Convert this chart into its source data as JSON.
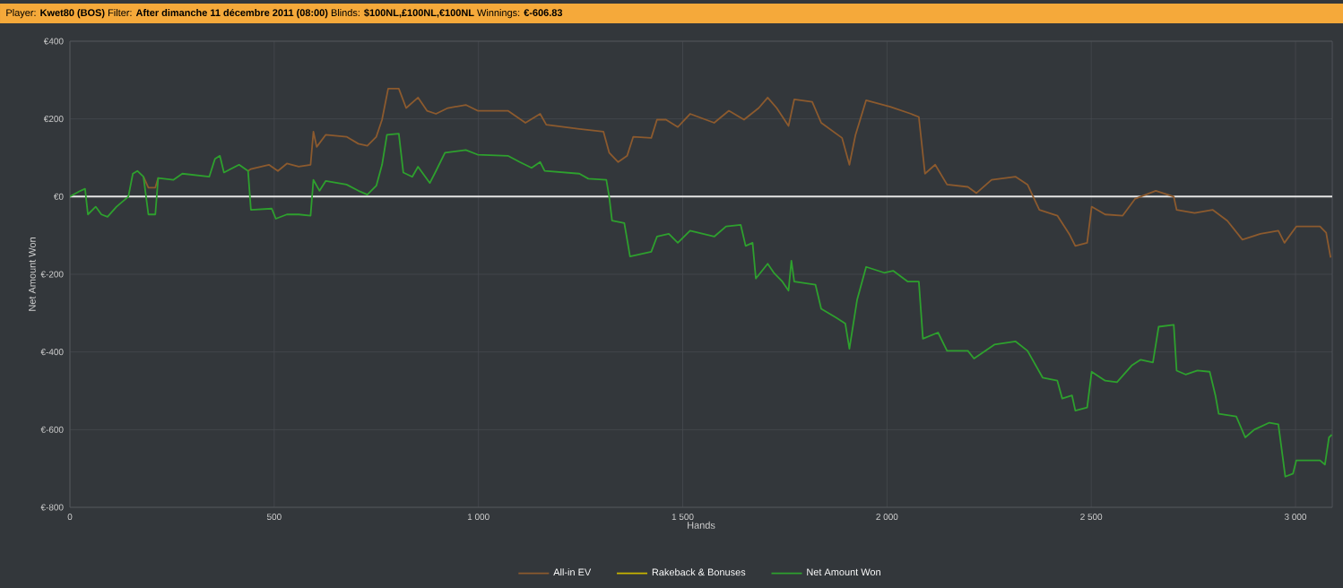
{
  "chart_data": {
    "type": "line",
    "title": "Player: **Kwet80 (BOS)** Filter: **After dimanche 11 décembre 2011 (08:00)** Blinds: **$100NL,£100NL,€100NL** Winnings: **€-606.83**",
    "xlabel": "Hands",
    "ylabel": "Net Amount Won",
    "xlim": [
      0,
      3090
    ],
    "ylim": [
      -800,
      400
    ],
    "xticks": [
      0,
      500,
      {
        "value": 1000,
        "label": "1 000"
      },
      {
        "value": 1500,
        "label": "1 500"
      },
      {
        "value": 2000,
        "label": "2 000"
      },
      {
        "value": 2500,
        "label": "2 500"
      },
      {
        "value": 3000,
        "label": "3 000"
      }
    ],
    "yticks": [
      {
        "value": -800,
        "label": "€-800"
      },
      {
        "value": -600,
        "label": "€-600"
      },
      {
        "value": -400,
        "label": "€-400"
      },
      {
        "value": -200,
        "label": "€-200"
      },
      {
        "value": 0,
        "label": "€0"
      },
      {
        "value": 200,
        "label": "€200"
      },
      {
        "value": 400,
        "label": "€400"
      }
    ],
    "grid": true,
    "legend": "bottom",
    "marker": "none",
    "line_style": "solid",
    "ref_lines": [
      {
        "axis": "y",
        "value": 0,
        "color": "#e6e6e6"
      }
    ],
    "series": [
      {
        "name": "All-in EV",
        "color": "#8c5a2e",
        "x": [
          180,
          192,
          209,
          216,
          300,
          436,
          443,
          487,
          509,
          531,
          560,
          589,
          596,
          604,
          626,
          677,
          706,
          728,
          750,
          764,
          779,
          805,
          823,
          852,
          874,
          896,
          925,
          969,
          998,
          1072,
          1115,
          1151,
          1166,
          1247,
          1306,
          1320,
          1342,
          1364,
          1379,
          1423,
          1437,
          1459,
          1488,
          1518,
          1577,
          1613,
          1650,
          1686,
          1708,
          1730,
          1759,
          1773,
          1817,
          1839,
          1890,
          1908,
          1923,
          1949,
          2008,
          2059,
          2078,
          2093,
          2118,
          2147,
          2198,
          2219,
          2256,
          2315,
          2344,
          2373,
          2417,
          2446,
          2461,
          2490,
          2501,
          2534,
          2577,
          2607,
          2658,
          2702,
          2709,
          2753,
          2797,
          2833,
          2870,
          2914,
          2958,
          2973,
          3002,
          3060,
          3075,
          3086
        ],
        "values": [
          51,
          23,
          23,
          48,
          null,
          66,
          71,
          82,
          66,
          85,
          77,
          82,
          167,
          128,
          159,
          154,
          136,
          131,
          154,
          198,
          278,
          278,
          228,
          255,
          221,
          213,
          228,
          236,
          221,
          221,
          190,
          213,
          185,
          174,
          167,
          113,
          89,
          105,
          154,
          151,
          198,
          198,
          179,
          213,
          190,
          221,
          198,
          228,
          255,
          228,
          182,
          250,
          244,
          190,
          151,
          82,
          159,
          248,
          231,
          213,
          205,
          59,
          82,
          31,
          25,
          9,
          43,
          51,
          31,
          -34,
          -49,
          -96,
          -127,
          -119,
          -26,
          -46,
          -49,
          -6,
          15,
          0,
          -34,
          -42,
          -34,
          -62,
          -111,
          -96,
          -88,
          -119,
          -77,
          -77,
          -93,
          -157
        ]
      },
      {
        "name": "Rakeback & Bonuses",
        "color": "#c8b400"
      },
      {
        "name": "Net Amount Won",
        "color": "#2ea02e",
        "x": [
          0,
          26,
          37,
          44,
          63,
          77,
          92,
          114,
          143,
          154,
          165,
          180,
          192,
          209,
          216,
          253,
          275,
          341,
          355,
          367,
          377,
          414,
          436,
          443,
          494,
          504,
          531,
          560,
          589,
          596,
          611,
          626,
          677,
          706,
          728,
          750,
          764,
          776,
          805,
          816,
          838,
          852,
          881,
          896,
          918,
          969,
          998,
          1072,
          1101,
          1130,
          1151,
          1162,
          1247,
          1269,
          1313,
          1320,
          1327,
          1357,
          1371,
          1423,
          1437,
          1466,
          1488,
          1518,
          1577,
          1606,
          1642,
          1654,
          1671,
          1679,
          1708,
          1723,
          1744,
          1759,
          1766,
          1773,
          1825,
          1839,
          1876,
          1898,
          1908,
          1927,
          1949,
          1993,
          2015,
          2051,
          2078,
          2088,
          2125,
          2147,
          2198,
          2213,
          2263,
          2315,
          2344,
          2381,
          2417,
          2429,
          2453,
          2461,
          2490,
          2501,
          2534,
          2563,
          2599,
          2621,
          2651,
          2665,
          2702,
          2709,
          2731,
          2760,
          2790,
          2804,
          2812,
          2855,
          2877,
          2899,
          2936,
          2958,
          2975,
          2994,
          3002,
          3060,
          3072,
          3082,
          3089
        ],
        "values": [
          0,
          15,
          20,
          -46,
          -26,
          -46,
          -52,
          -26,
          0,
          59,
          66,
          51,
          -46,
          -46,
          48,
          43,
          59,
          51,
          97,
          105,
          62,
          82,
          66,
          -34,
          -31,
          -57,
          -46,
          -46,
          -49,
          43,
          15,
          40,
          31,
          15,
          5,
          28,
          82,
          159,
          162,
          62,
          51,
          77,
          35,
          66,
          113,
          120,
          108,
          105,
          89,
          74,
          89,
          66,
          59,
          46,
          43,
          0,
          -62,
          -68,
          -154,
          -142,
          -103,
          -96,
          -119,
          -88,
          -103,
          -77,
          -73,
          -127,
          -119,
          -211,
          -173,
          -196,
          -219,
          -242,
          -165,
          -219,
          -227,
          -289,
          -312,
          -327,
          -392,
          -265,
          -181,
          -196,
          -191,
          -219,
          -219,
          -366,
          -350,
          -397,
          -397,
          -417,
          -381,
          -373,
          -397,
          -466,
          -474,
          -520,
          -512,
          -551,
          -543,
          -451,
          -474,
          -478,
          -435,
          -420,
          -427,
          -335,
          -330,
          -448,
          -458,
          -448,
          -451,
          -512,
          -559,
          -566,
          -620,
          -600,
          -582,
          -586,
          -721,
          -713,
          -679,
          -679,
          -690,
          -620,
          -613
        ]
      }
    ]
  }
}
